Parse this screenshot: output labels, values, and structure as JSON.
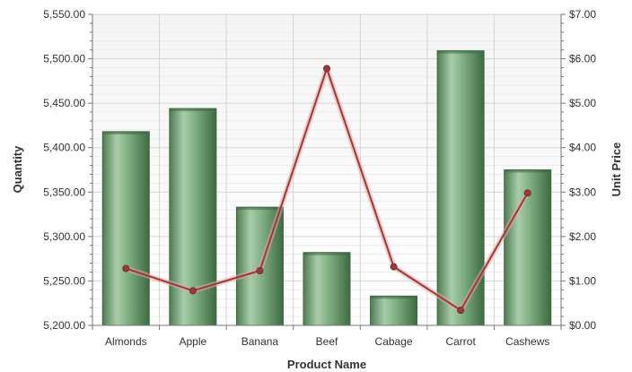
{
  "chart_data": {
    "type": "bar",
    "categories": [
      "Almonds",
      "Apple",
      "Banana",
      "Beef",
      "Cabage",
      "Carrot",
      "Cashews"
    ],
    "series": [
      {
        "kind": "bar",
        "axis": "left",
        "values": [
          5418,
          5444,
          5333,
          5282,
          5233,
          5509,
          5375
        ],
        "color": "#6f9e70"
      },
      {
        "kind": "line",
        "axis": "right",
        "values": [
          1.28,
          0.78,
          1.23,
          5.78,
          1.32,
          0.34,
          2.98
        ],
        "color": "#9b3a3a"
      }
    ],
    "xlabel": "Product Name",
    "ylabel": "Quantity",
    "y2label": "Unit Price",
    "ylim": [
      5200,
      5550
    ],
    "y2lim": [
      0,
      7
    ],
    "y_ticks": [
      "5,200.00",
      "5,250.00",
      "5,300.00",
      "5,350.00",
      "5,400.00",
      "5,450.00",
      "5,500.00",
      "5,550.00"
    ],
    "y2_ticks": [
      "$0.00",
      "$1.00",
      "$2.00",
      "$3.00",
      "$4.00",
      "$5.00",
      "$6.00",
      "$7.00"
    ],
    "grid": true
  }
}
